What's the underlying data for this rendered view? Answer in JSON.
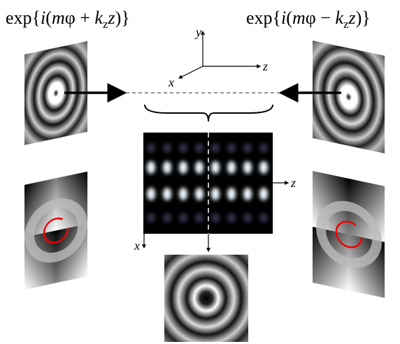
{
  "formulas": [
    {
      "parts": [
        "exp{",
        "i",
        "(",
        "m",
        "φ + ",
        "k",
        "z",
        "z",
        ")}"
      ]
    },
    {
      "parts": [
        "exp{",
        "i",
        "(",
        "m",
        "φ − ",
        "k",
        "z",
        "z",
        ")}"
      ]
    }
  ],
  "axes": {
    "y": "y",
    "z": "z",
    "x": "x"
  },
  "pattern_axes": {
    "z": "z",
    "x": "x"
  }
}
